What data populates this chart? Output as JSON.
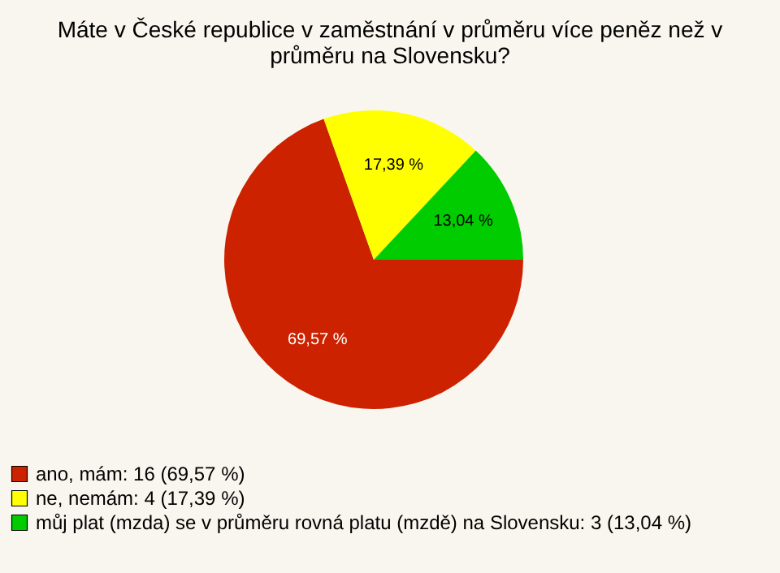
{
  "chart_data": {
    "type": "pie",
    "title": "Máte v České republice v zaměstnání v průměru více peněz než v průměru na Slovensku?",
    "categories": [
      "ano, mám: 16 (69,57 %)",
      "ne, nemám: 4 (17,39 %)",
      "můj plat (mzda) se v průměru rovná platu (mzdě) na Slovensku: 3 (13,04 %)"
    ],
    "values": [
      69.57,
      17.39,
      13.04
    ],
    "value_labels": [
      "69,57 %",
      "17,39 %",
      "13,04 %"
    ],
    "colors": [
      "#cc2200",
      "#ffff00",
      "#00cc00"
    ],
    "legend": "bottom left"
  }
}
